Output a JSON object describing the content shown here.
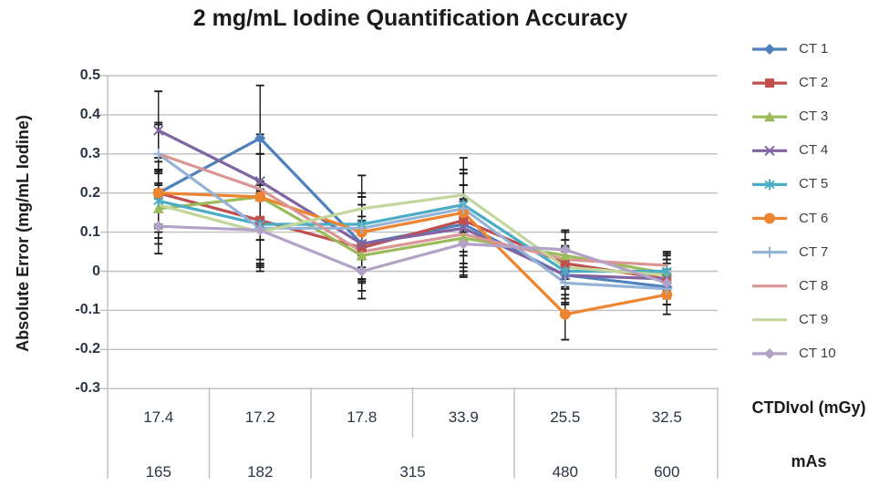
{
  "title": "2 mg/mL Iodine Quantification Accuracy",
  "colors": {
    "gridline": "#BFBFBF",
    "axis_line": "#BFBFBF",
    "error_bar": "#1a1a1a",
    "tick_text": "#2a3442",
    "label_text": "#1b1b1b",
    "legend_text": "#3f3f3f"
  },
  "chart_data": {
    "type": "line",
    "title": "2 mg/mL Iodine Quantification Accuracy",
    "ylabel": "Absolute Error (mg/mL Iodine)",
    "ylim": [
      -0.3,
      0.5
    ],
    "y_tick_step": 0.1,
    "y_ticks": [
      "0.5",
      "0.4",
      "0.3",
      "0.2",
      "0.1",
      "0",
      "-0.1",
      "-0.2",
      "-0.3"
    ],
    "grid": "horizontal",
    "legend_position": "right",
    "x_axis": {
      "ctdivol_label": "CTDIvol (mGy)",
      "ctdivol_values": [
        "17.4",
        "17.2",
        "17.8",
        "33.9",
        "25.5",
        "32.5"
      ],
      "mas_label": "mAs",
      "mas_cells": [
        {
          "label": "165",
          "span": 1
        },
        {
          "label": "182",
          "span": 1
        },
        {
          "label": "315",
          "span": 2
        },
        {
          "label": "480",
          "span": 1
        },
        {
          "label": "600",
          "span": 1
        }
      ]
    },
    "series": [
      {
        "name": "CT 1",
        "color": "#4F81BD",
        "marker": "diamond",
        "values": [
          0.2,
          0.34,
          0.07,
          0.12,
          -0.01,
          -0.04
        ],
        "errors": [
          0.09,
          0.135,
          0.09,
          0.1,
          0.06,
          0.045
        ]
      },
      {
        "name": "CT 2",
        "color": "#C0504D",
        "marker": "square",
        "values": [
          0.2,
          0.13,
          0.06,
          0.13,
          0.02,
          -0.02
        ],
        "errors": [
          0.08,
          0.1,
          0.08,
          0.09,
          0.06,
          0.04
        ]
      },
      {
        "name": "CT 3",
        "color": "#9BBB59",
        "marker": "triangle",
        "values": [
          0.16,
          0.19,
          0.04,
          0.085,
          0.04,
          -0.005
        ],
        "errors": [
          0.09,
          0.11,
          0.09,
          0.1,
          0.06,
          0.05
        ]
      },
      {
        "name": "CT 4",
        "color": "#8064A2",
        "marker": "x",
        "values": [
          0.36,
          0.23,
          0.07,
          0.11,
          -0.01,
          -0.02
        ],
        "errors": [
          0.1,
          0.12,
          0.1,
          0.11,
          0.07,
          0.05
        ]
      },
      {
        "name": "CT 5",
        "color": "#4BACC6",
        "marker": "asterisk",
        "values": [
          0.18,
          0.12,
          0.12,
          0.17,
          0.0,
          0.0
        ],
        "errors": [
          0.08,
          0.1,
          0.08,
          0.09,
          0.06,
          0.04
        ]
      },
      {
        "name": "CT 6",
        "color": "#ED8430",
        "marker": "circle",
        "values": [
          0.2,
          0.19,
          0.1,
          0.15,
          -0.11,
          -0.06
        ],
        "errors": [
          0.09,
          0.11,
          0.09,
          0.1,
          0.065,
          0.05
        ]
      },
      {
        "name": "CT 7",
        "color": "#95B3D7",
        "marker": "plus",
        "values": [
          0.3,
          0.11,
          0.11,
          0.16,
          -0.03,
          -0.045
        ],
        "errors": [
          0.08,
          0.1,
          0.08,
          0.09,
          0.055,
          0.04
        ]
      },
      {
        "name": "CT 8",
        "color": "#D99694",
        "marker": "none",
        "values": [
          0.3,
          0.21,
          0.05,
          0.095,
          0.03,
          0.015
        ],
        "errors": [
          0.075,
          0.09,
          0.075,
          0.085,
          0.05,
          0.035
        ]
      },
      {
        "name": "CT 9",
        "color": "#C3D69B",
        "marker": "none",
        "values": [
          0.17,
          0.1,
          0.16,
          0.195,
          0.01,
          -0.01
        ],
        "errors": [
          0.085,
          0.1,
          0.085,
          0.095,
          0.055,
          0.04
        ]
      },
      {
        "name": "CT 10",
        "color": "#B3A2C7",
        "marker": "diamond",
        "values": [
          0.115,
          0.105,
          0.0,
          0.07,
          0.055,
          -0.03
        ],
        "errors": [
          0.07,
          0.09,
          0.07,
          0.08,
          0.05,
          0.035
        ]
      }
    ]
  }
}
